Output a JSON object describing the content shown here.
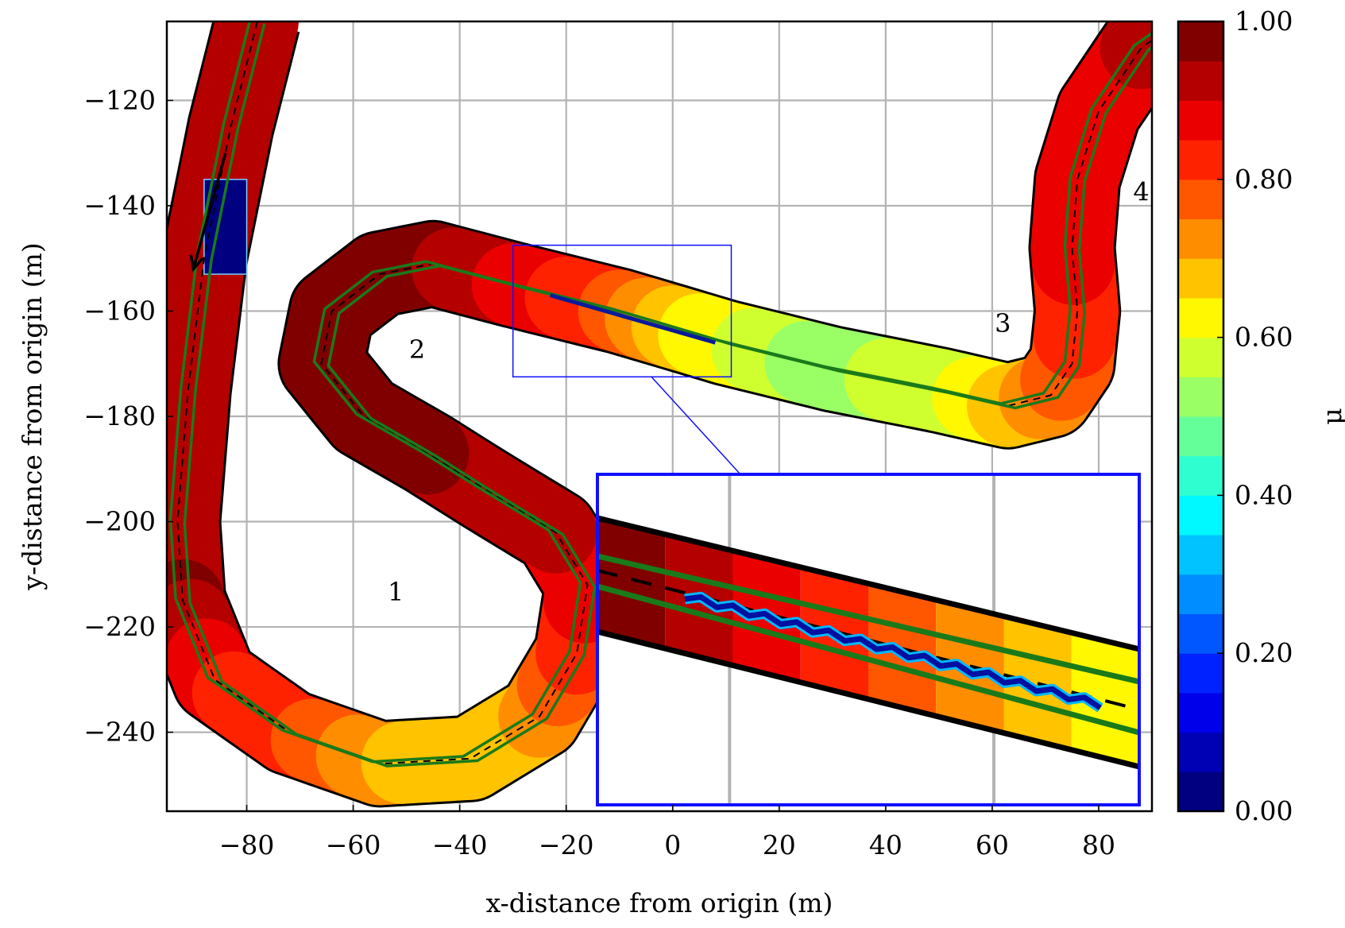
{
  "chart_data": {
    "type": "heatmap",
    "xlabel": "x-distance from origin (m)",
    "ylabel": "y-distance from origin (m)",
    "xlim": [
      -95,
      90
    ],
    "ylim": [
      -255,
      -105
    ],
    "xticks": [
      -80,
      -60,
      -40,
      -20,
      0,
      20,
      40,
      60,
      80
    ],
    "xtick_labels": [
      "−80",
      "−60",
      "−40",
      "−20",
      "0",
      "20",
      "40",
      "60",
      "80"
    ],
    "yticks": [
      -120,
      -140,
      -160,
      -180,
      -200,
      -220,
      -240
    ],
    "ytick_labels": [
      "−120",
      "−140",
      "−160",
      "−180",
      "−200",
      "−220",
      "−240"
    ],
    "grid": true,
    "colorbar": {
      "label": "μ",
      "range": [
        0,
        1
      ],
      "ticks": [
        0,
        0.2,
        0.4,
        0.6,
        0.8,
        1.0
      ],
      "tick_labels": [
        "0.00",
        "0.20",
        "0.40",
        "0.60",
        "0.80",
        "1.00"
      ],
      "colormap": "jet",
      "levels": 20
    },
    "track_centerline": [
      [
        -78,
        -105
      ],
      [
        -83,
        -125
      ],
      [
        -88,
        -150
      ],
      [
        -91,
        -175
      ],
      [
        -93,
        -200
      ],
      [
        -92,
        -215
      ],
      [
        -86,
        -230
      ],
      [
        -72,
        -240
      ],
      [
        -55,
        -246
      ],
      [
        -38,
        -245
      ],
      [
        -25,
        -237
      ],
      [
        -18,
        -225
      ],
      [
        -16,
        -212
      ],
      [
        -22,
        -202
      ],
      [
        -35,
        -194
      ],
      [
        -46,
        -187
      ],
      [
        -58,
        -180
      ],
      [
        -66,
        -170
      ],
      [
        -64,
        -160
      ],
      [
        -55,
        -153
      ],
      [
        -45,
        -151
      ],
      [
        -30,
        -155
      ],
      [
        -10,
        -160
      ],
      [
        10,
        -166
      ],
      [
        30,
        -171
      ],
      [
        50,
        -175
      ],
      [
        63,
        -178
      ],
      [
        71,
        -176
      ],
      [
        75,
        -170
      ],
      [
        76,
        -160
      ],
      [
        75,
        -148
      ],
      [
        76,
        -135
      ],
      [
        80,
        -122
      ],
      [
        88,
        -110
      ],
      [
        95,
        -105
      ]
    ],
    "mu_along_track": [
      0.9,
      0.9,
      0.9,
      0.9,
      0.9,
      0.95,
      0.85,
      0.8,
      0.7,
      0.65,
      0.7,
      0.8,
      0.88,
      0.9,
      0.9,
      0.95,
      0.95,
      0.98,
      0.98,
      0.98,
      0.96,
      0.88,
      0.78,
      0.6,
      0.52,
      0.58,
      0.65,
      0.72,
      0.78,
      0.82,
      0.86,
      0.85,
      0.88,
      0.9,
      0.9
    ],
    "low_friction_patch": {
      "x": [
        -88,
        -80
      ],
      "y": [
        -135,
        -153
      ],
      "mu": 0.02
    },
    "ice_strip": {
      "x": [
        -23,
        8
      ],
      "y": [
        -157,
        -166
      ]
    },
    "turn_labels": [
      {
        "text": "1",
        "x": -52,
        "y": -215
      },
      {
        "text": "2",
        "x": -48,
        "y": -169
      },
      {
        "text": "3",
        "x": 62,
        "y": -164
      },
      {
        "text": "4",
        "x": 88,
        "y": -139
      }
    ],
    "direction_arrow": {
      "from": [
        -84,
        -130
      ],
      "to": [
        -90,
        -152
      ]
    },
    "zoom_region": {
      "x": [
        -30,
        11
      ],
      "y": [
        -147.5,
        -172.5
      ]
    }
  }
}
